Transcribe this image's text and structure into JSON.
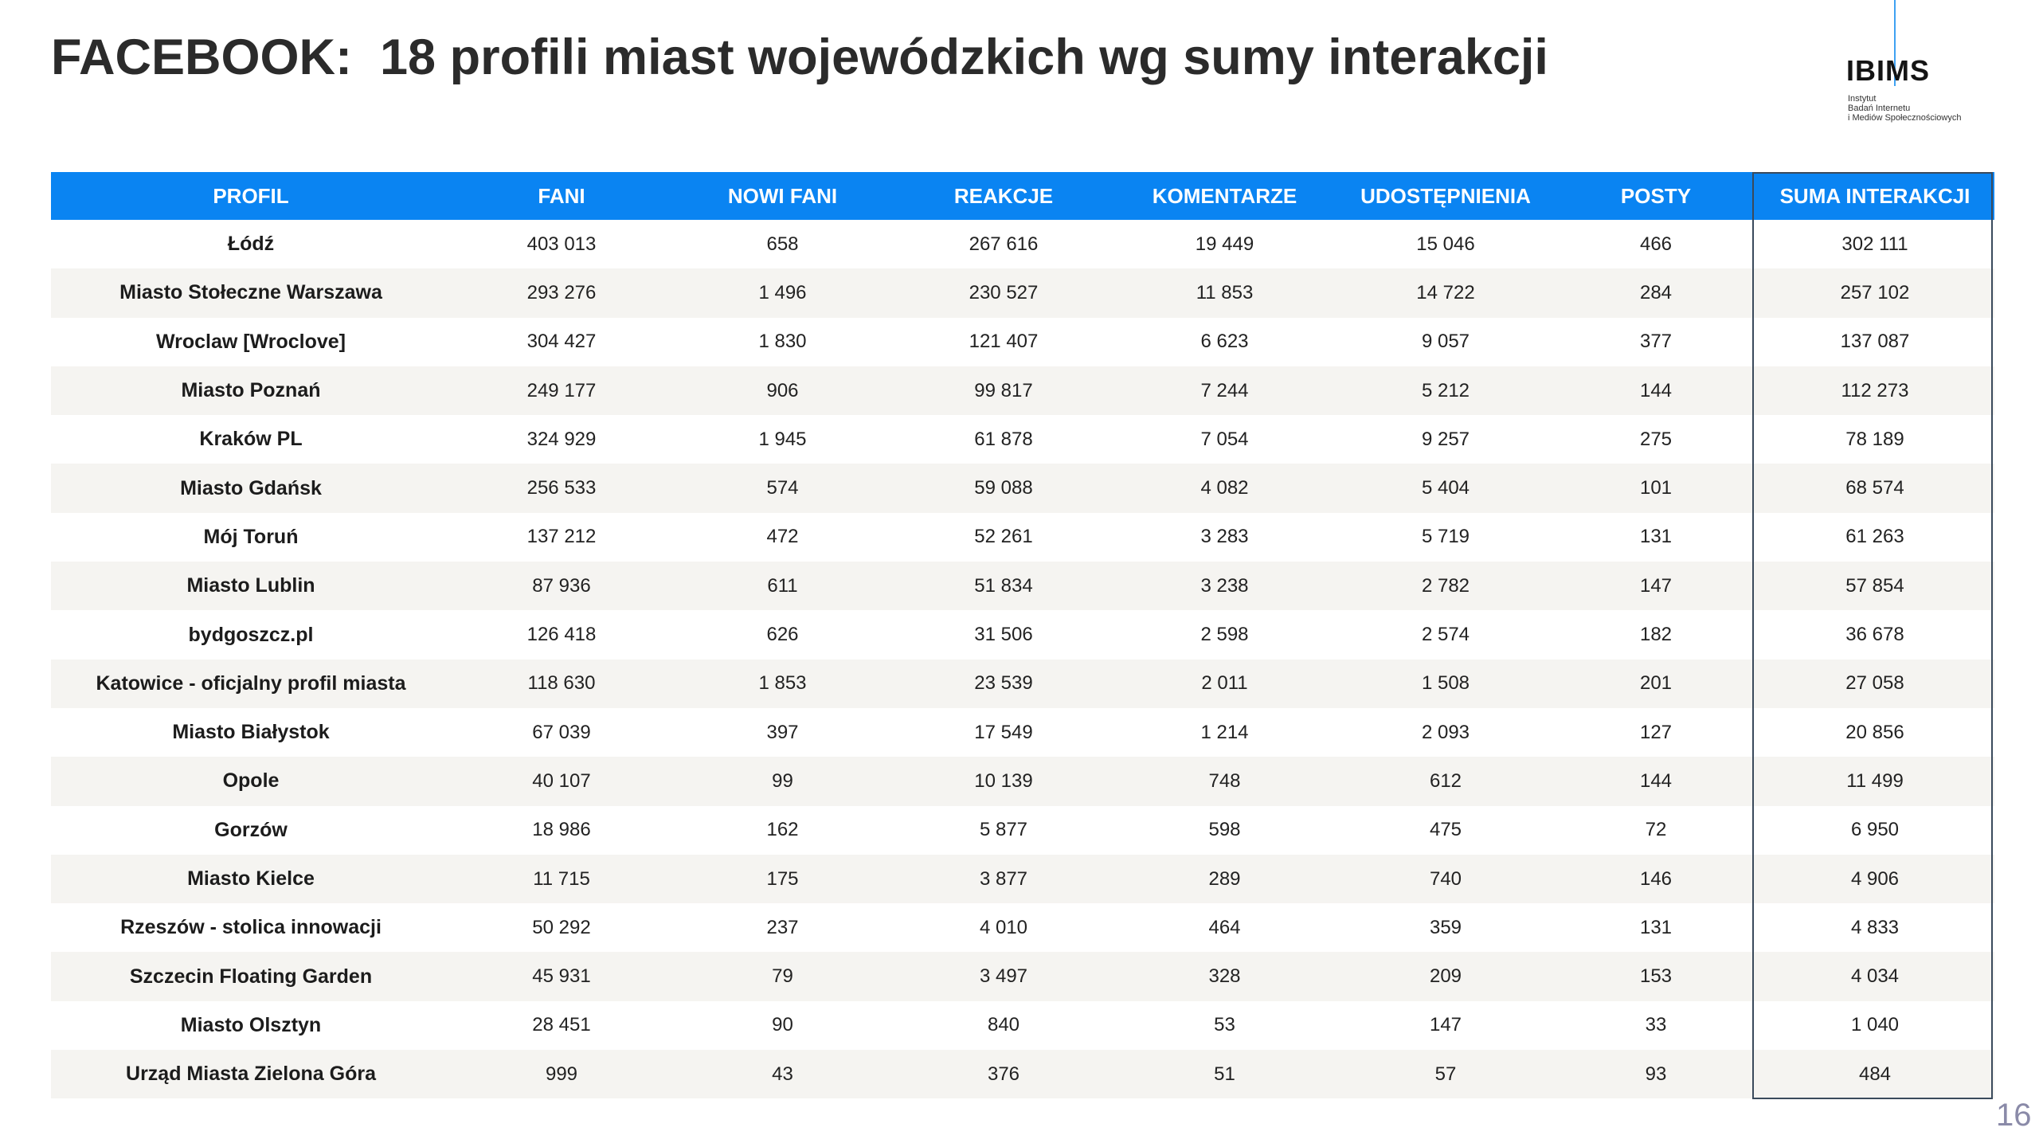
{
  "title": "FACEBOOK:  18 profili miast wojewódzkich wg sumy interakcji",
  "logo": {
    "name": "IBIMS",
    "subtitle_lines": [
      "Instytut",
      "Badań Internetu",
      "i Mediów Społecznościowych"
    ]
  },
  "table": {
    "headers": [
      "PROFIL",
      "FANI",
      "NOWI FANI",
      "REAKCJE",
      "KOMENTARZE",
      "UDOSTĘPNIENIA",
      "POSTY",
      "SUMA INTERAKCJI"
    ],
    "rows": [
      [
        "Łódź",
        "403 013",
        "658",
        "267 616",
        "19 449",
        "15 046",
        "466",
        "302 111"
      ],
      [
        "Miasto Stołeczne Warszawa",
        "293 276",
        "1 496",
        "230 527",
        "11 853",
        "14 722",
        "284",
        "257 102"
      ],
      [
        "Wroclaw [Wroclove]",
        "304 427",
        "1 830",
        "121 407",
        "6 623",
        "9 057",
        "377",
        "137 087"
      ],
      [
        "Miasto Poznań",
        "249 177",
        "906",
        "99 817",
        "7 244",
        "5 212",
        "144",
        "112 273"
      ],
      [
        "Kraków PL",
        "324 929",
        "1 945",
        "61 878",
        "7 054",
        "9 257",
        "275",
        "78 189"
      ],
      [
        "Miasto Gdańsk",
        "256 533",
        "574",
        "59 088",
        "4 082",
        "5 404",
        "101",
        "68 574"
      ],
      [
        "Mój Toruń",
        "137 212",
        "472",
        "52 261",
        "3 283",
        "5 719",
        "131",
        "61 263"
      ],
      [
        "Miasto Lublin",
        "87 936",
        "611",
        "51 834",
        "3 238",
        "2 782",
        "147",
        "57 854"
      ],
      [
        "bydgoszcz.pl",
        "126 418",
        "626",
        "31 506",
        "2 598",
        "2 574",
        "182",
        "36 678"
      ],
      [
        "Katowice - oficjalny profil miasta",
        "118 630",
        "1 853",
        "23 539",
        "2 011",
        "1 508",
        "201",
        "27 058"
      ],
      [
        "Miasto Białystok",
        "67 039",
        "397",
        "17 549",
        "1 214",
        "2 093",
        "127",
        "20 856"
      ],
      [
        "Opole",
        "40 107",
        "99",
        "10 139",
        "748",
        "612",
        "144",
        "11 499"
      ],
      [
        "Gorzów",
        "18 986",
        "162",
        "5 877",
        "598",
        "475",
        "72",
        "6 950"
      ],
      [
        "Miasto Kielce",
        "11 715",
        "175",
        "3 877",
        "289",
        "740",
        "146",
        "4 906"
      ],
      [
        "Rzeszów - stolica innowacji",
        "50 292",
        "237",
        "4 010",
        "464",
        "359",
        "131",
        "4 833"
      ],
      [
        "Szczecin Floating Garden",
        "45 931",
        "79",
        "3 497",
        "328",
        "209",
        "153",
        "4 034"
      ],
      [
        "Miasto Olsztyn",
        "28 451",
        "90",
        "840",
        "53",
        "147",
        "33",
        "1 040"
      ],
      [
        "Urząd Miasta Zielona Góra",
        "999",
        "43",
        "376",
        "51",
        "57",
        "93",
        "484"
      ]
    ]
  },
  "page_number": "16",
  "colors": {
    "header_bg": "#0a84f2",
    "header_text": "#ffffff",
    "alt_row_bg": "#f5f4f1",
    "highlight_border": "#3a4a5c",
    "logo_accent": "#3fa1f2"
  }
}
